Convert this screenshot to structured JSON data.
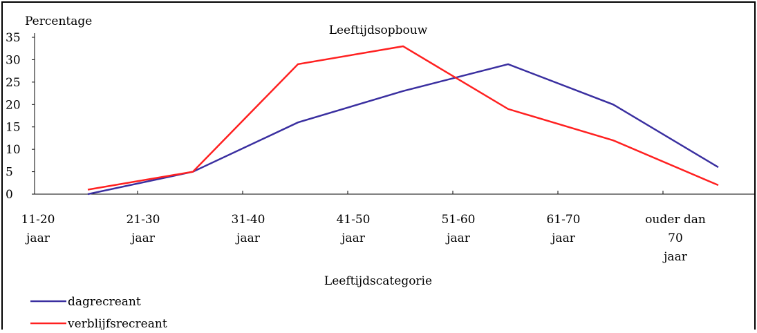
{
  "chart_data": {
    "type": "line",
    "title": "Leeftijdsopbouw",
    "ylabel": "Percentage",
    "xlabel": "Leeftijdscategorie",
    "ylim": [
      0,
      35
    ],
    "yticks": [
      0,
      5,
      10,
      15,
      20,
      25,
      30,
      35
    ],
    "categories": [
      [
        "11-20",
        "jaar"
      ],
      [
        "21-30",
        "jaar"
      ],
      [
        "31-40",
        "jaar"
      ],
      [
        "41-50",
        "jaar"
      ],
      [
        "51-60",
        "jaar"
      ],
      [
        "61-70",
        "jaar"
      ],
      [
        "ouder dan",
        "70",
        "jaar"
      ]
    ],
    "series": [
      {
        "name": "dagrecreant",
        "color": "#3a2fa0",
        "values": [
          0,
          5,
          16,
          23,
          29,
          20,
          6
        ]
      },
      {
        "name": "verblijfsrecreant",
        "color": "#ff2020",
        "values": [
          1,
          5,
          29,
          33,
          19,
          12,
          2
        ]
      }
    ],
    "legend_position": "bottom-left",
    "grid": false
  }
}
